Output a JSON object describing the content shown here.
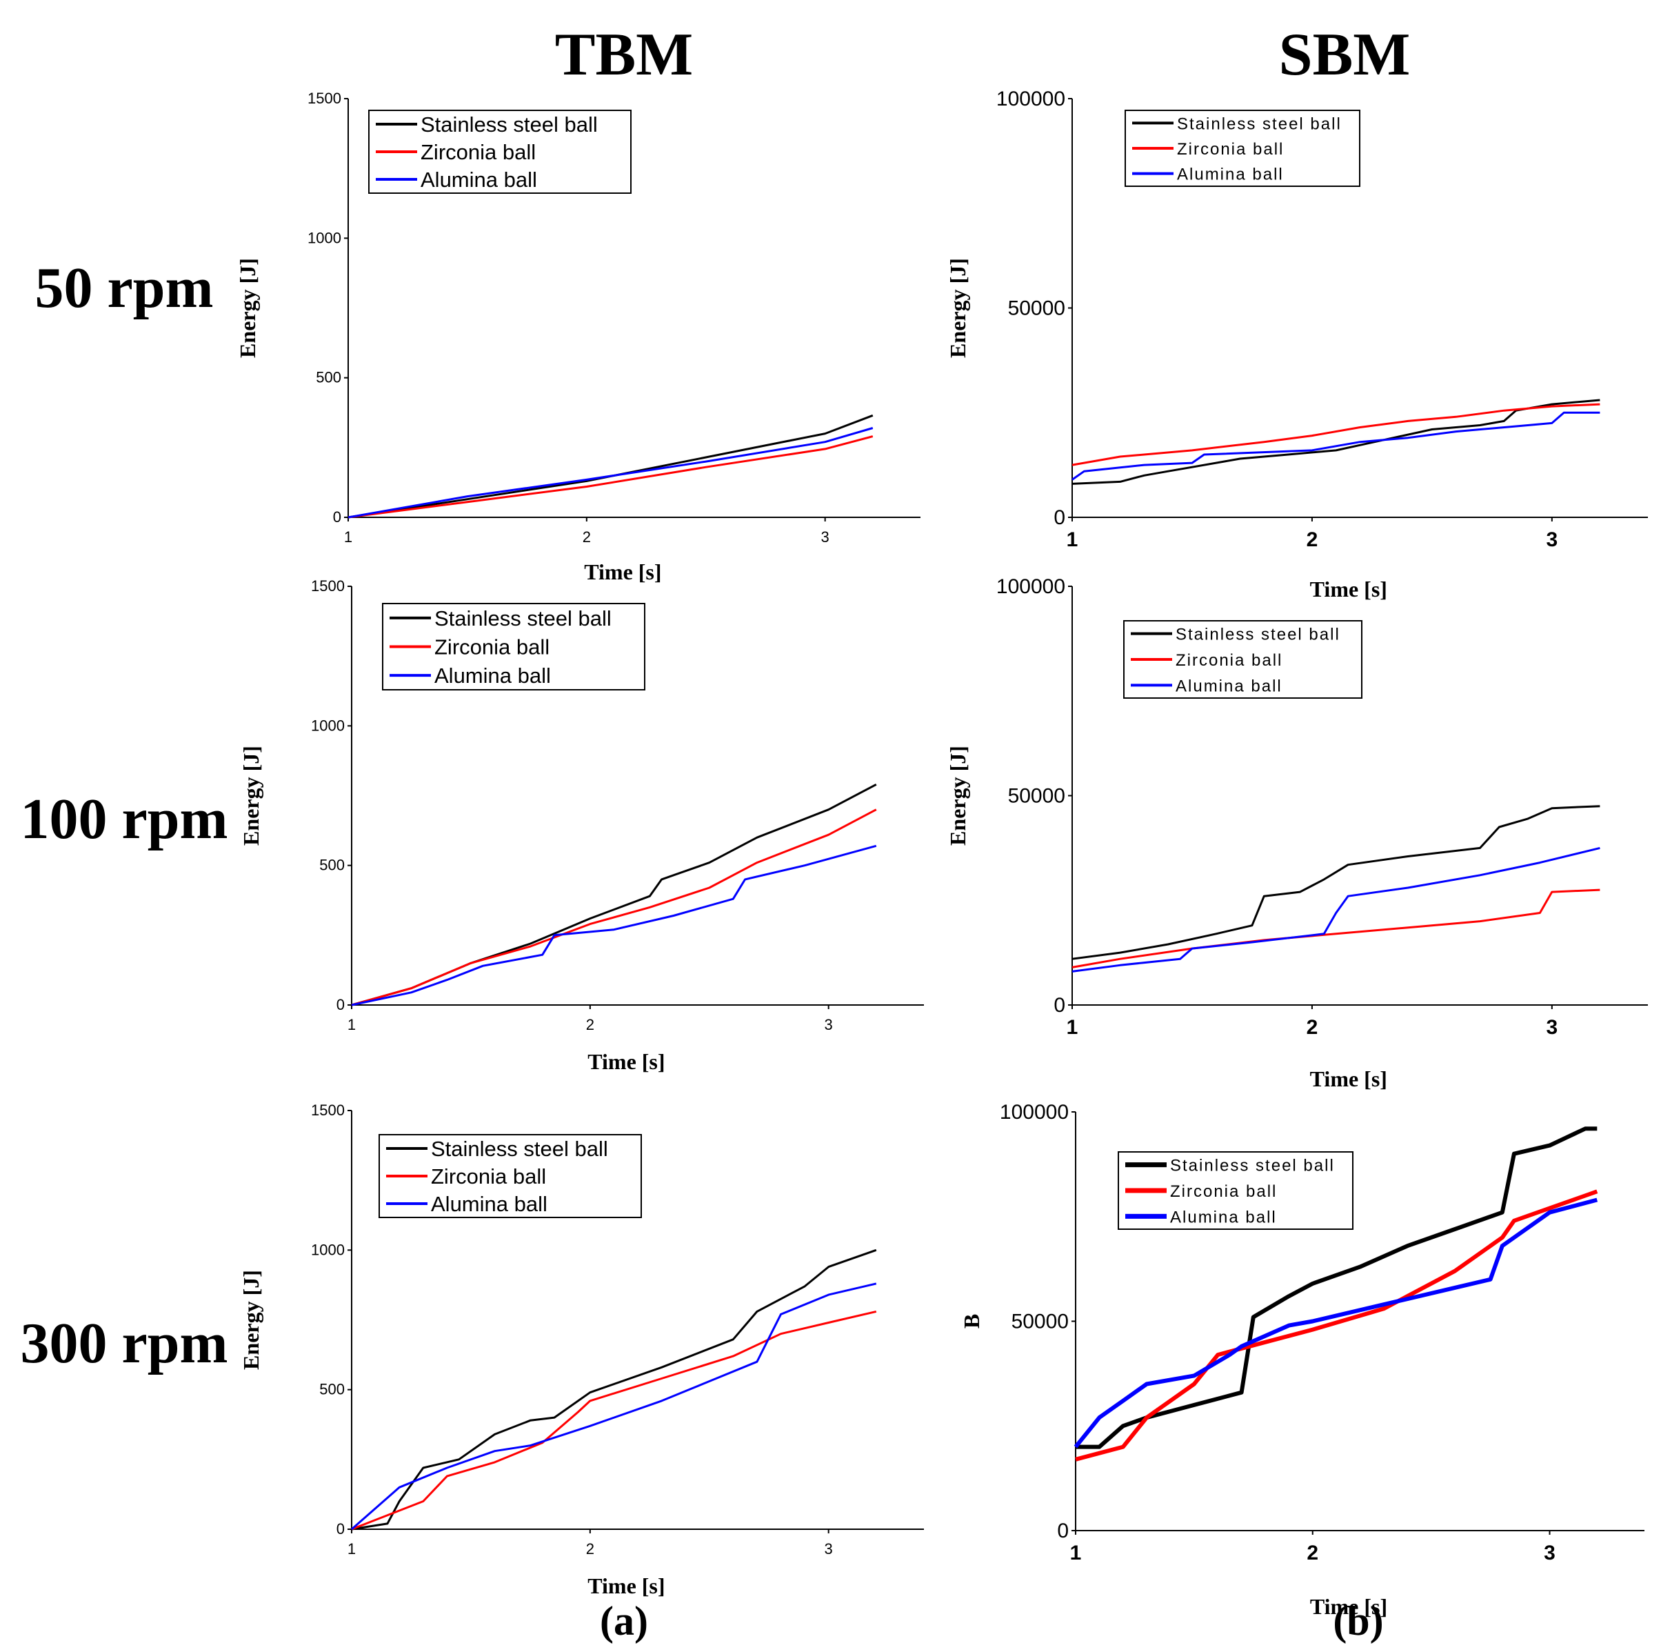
{
  "column_titles": {
    "tbm": "TBM",
    "sbm": "SBM"
  },
  "row_labels": {
    "r50": "50 rpm",
    "r100": "100 rpm",
    "r300": "300 rpm"
  },
  "panel_labels": {
    "a": "(a)",
    "b": "(b)"
  },
  "colors": {
    "steel": "#000000",
    "zirconia": "#ff0000",
    "alumina": "#0000ff"
  },
  "chart_data": [
    {
      "id": "tbm-50",
      "type": "line",
      "title": "",
      "xlabel": "Time [s]",
      "ylabel": "Energy [J]",
      "xlim": [
        1,
        3.4
      ],
      "ylim": [
        0,
        1500
      ],
      "xticks": [
        1,
        2,
        3
      ],
      "xtick_labels": [
        "1",
        "2",
        "3"
      ],
      "yticks": [
        0,
        500,
        1000,
        1500
      ],
      "ytick_labels": [
        "0",
        "500",
        "1000",
        "1500"
      ],
      "legend": [
        "Stainless steel ball",
        "Zirconia ball",
        "Alumina ball"
      ],
      "series": [
        {
          "name": "Stainless steel ball",
          "x": [
            1,
            1.5,
            2,
            2.5,
            3,
            3.2
          ],
          "values": [
            0,
            65,
            130,
            215,
            300,
            365
          ]
        },
        {
          "name": "Zirconia ball",
          "x": [
            1,
            1.5,
            2,
            2.5,
            3,
            3.2
          ],
          "values": [
            0,
            55,
            110,
            180,
            245,
            290
          ]
        },
        {
          "name": "Alumina ball",
          "x": [
            1,
            1.5,
            2,
            2.5,
            3,
            3.2
          ],
          "values": [
            0,
            75,
            135,
            200,
            270,
            320
          ]
        }
      ]
    },
    {
      "id": "sbm-50",
      "type": "line",
      "title": "",
      "xlabel": "Time [s]",
      "ylabel": "Energy [J]",
      "xlim": [
        1,
        3.4
      ],
      "ylim": [
        0,
        100000
      ],
      "xticks": [
        1,
        2,
        3
      ],
      "xtick_labels": [
        "1",
        "2",
        "3"
      ],
      "yticks": [
        0,
        50000,
        100000
      ],
      "ytick_labels": [
        "0",
        "50000",
        "100000"
      ],
      "legend": [
        "Stainless steel ball",
        "Zirconia ball",
        "Alumina ball"
      ],
      "series": [
        {
          "name": "Stainless steel ball",
          "x": [
            1,
            1.2,
            1.3,
            1.4,
            1.5,
            1.7,
            1.9,
            2.1,
            2.3,
            2.5,
            2.7,
            2.8,
            2.85,
            3.0,
            3.2
          ],
          "values": [
            8000,
            8500,
            10000,
            11000,
            12000,
            14000,
            15000,
            16000,
            18500,
            21000,
            22000,
            23000,
            25500,
            27000,
            28000
          ]
        },
        {
          "name": "Zirconia ball",
          "x": [
            1,
            1.2,
            1.5,
            1.8,
            2.0,
            2.2,
            2.4,
            2.6,
            2.8,
            3.0,
            3.2
          ],
          "values": [
            12500,
            14500,
            16000,
            18000,
            19500,
            21500,
            23000,
            24000,
            25500,
            26500,
            27000
          ]
        },
        {
          "name": "Alumina ball",
          "x": [
            1,
            1.05,
            1.3,
            1.5,
            1.55,
            2.0,
            2.2,
            2.4,
            2.6,
            2.9,
            3.0,
            3.05,
            3.2
          ],
          "values": [
            9000,
            11000,
            12500,
            13000,
            15000,
            16000,
            18000,
            19000,
            20500,
            22000,
            22500,
            25000,
            25000
          ]
        }
      ]
    },
    {
      "id": "tbm-100",
      "type": "line",
      "title": "",
      "xlabel": "Time [s]",
      "ylabel": "Energy [J]",
      "xlim": [
        1,
        3.4
      ],
      "ylim": [
        0,
        1500
      ],
      "xticks": [
        1,
        2,
        3
      ],
      "xtick_labels": [
        "1",
        "2",
        "3"
      ],
      "yticks": [
        0,
        500,
        1000,
        1500
      ],
      "ytick_labels": [
        "0",
        "500",
        "1000",
        "1500"
      ],
      "legend": [
        "Stainless steel ball",
        "Zirconia ball",
        "Alumina ball"
      ],
      "series": [
        {
          "name": "Stainless steel ball",
          "x": [
            1,
            1.25,
            1.5,
            1.75,
            2,
            2.25,
            2.3,
            2.5,
            2.7,
            3,
            3.2
          ],
          "values": [
            0,
            60,
            150,
            220,
            310,
            390,
            450,
            510,
            600,
            700,
            790
          ]
        },
        {
          "name": "Zirconia ball",
          "x": [
            1,
            1.25,
            1.5,
            1.75,
            2,
            2.25,
            2.5,
            2.7,
            3,
            3.2
          ],
          "values": [
            0,
            60,
            150,
            210,
            290,
            350,
            420,
            510,
            610,
            700
          ]
        },
        {
          "name": "Alumina ball",
          "x": [
            1,
            1.25,
            1.4,
            1.55,
            1.8,
            1.85,
            2.1,
            2.35,
            2.6,
            2.65,
            2.9,
            3.2
          ],
          "values": [
            0,
            45,
            90,
            140,
            180,
            250,
            270,
            320,
            380,
            450,
            500,
            570
          ]
        }
      ]
    },
    {
      "id": "sbm-100",
      "type": "line",
      "title": "",
      "xlabel": "Time [s]",
      "ylabel": "Energy [J]",
      "xlim": [
        1,
        3.4
      ],
      "ylim": [
        0,
        100000
      ],
      "xticks": [
        1,
        2,
        3
      ],
      "xtick_labels": [
        "1",
        "2",
        "3"
      ],
      "yticks": [
        0,
        50000,
        100000
      ],
      "ytick_labels": [
        "0",
        "50000",
        "100000"
      ],
      "legend": [
        "Stainless steel ball",
        "Zirconia ball",
        "Alumina ball"
      ],
      "series": [
        {
          "name": "Stainless steel ball",
          "x": [
            1,
            1.2,
            1.4,
            1.6,
            1.75,
            1.8,
            1.95,
            2.05,
            2.15,
            2.4,
            2.7,
            2.78,
            2.9,
            3.0,
            3.2
          ],
          "values": [
            11000,
            12500,
            14500,
            17000,
            19000,
            26000,
            27000,
            30000,
            33500,
            35500,
            37500,
            42500,
            44500,
            47000,
            47500
          ]
        },
        {
          "name": "Zirconia ball",
          "x": [
            1,
            1.2,
            1.5,
            1.8,
            2.1,
            2.4,
            2.7,
            2.95,
            3.0,
            3.2
          ],
          "values": [
            9000,
            11000,
            13500,
            15500,
            17000,
            18500,
            20000,
            22000,
            27000,
            27500
          ]
        },
        {
          "name": "Alumina ball",
          "x": [
            1,
            1.2,
            1.45,
            1.5,
            1.75,
            2.05,
            2.1,
            2.15,
            2.4,
            2.7,
            2.95,
            3.2
          ],
          "values": [
            8000,
            9500,
            11000,
            13500,
            15000,
            17000,
            22000,
            26000,
            28000,
            31000,
            34000,
            37500
          ]
        }
      ]
    },
    {
      "id": "tbm-300",
      "type": "line",
      "title": "",
      "xlabel": "Time [s]",
      "ylabel": "Energy [J]",
      "xlim": [
        1,
        3.4
      ],
      "ylim": [
        0,
        1500
      ],
      "xticks": [
        1,
        2,
        3
      ],
      "xtick_labels": [
        "1",
        "2",
        "3"
      ],
      "yticks": [
        0,
        500,
        1000,
        1500
      ],
      "ytick_labels": [
        "0",
        "500",
        "1000",
        "1500"
      ],
      "legend": [
        "Stainless steel ball",
        "Zirconia ball",
        "Alumina ball"
      ],
      "series": [
        {
          "name": "Stainless steel ball",
          "x": [
            1,
            1.15,
            1.2,
            1.3,
            1.45,
            1.6,
            1.75,
            1.85,
            2.0,
            2.3,
            2.6,
            2.7,
            2.9,
            3.0,
            3.2
          ],
          "values": [
            0,
            20,
            100,
            220,
            250,
            340,
            390,
            400,
            490,
            580,
            680,
            780,
            870,
            940,
            1000
          ]
        },
        {
          "name": "Zirconia ball",
          "x": [
            1,
            1.3,
            1.4,
            1.6,
            1.8,
            1.95,
            2.0,
            2.3,
            2.6,
            2.8,
            3.0,
            3.2
          ],
          "values": [
            0,
            100,
            190,
            240,
            310,
            420,
            460,
            540,
            620,
            700,
            740,
            780
          ]
        },
        {
          "name": "Alumina ball",
          "x": [
            1,
            1.2,
            1.4,
            1.6,
            1.75,
            2.0,
            2.3,
            2.5,
            2.7,
            2.8,
            3.0,
            3.2
          ],
          "values": [
            0,
            150,
            220,
            280,
            300,
            370,
            460,
            530,
            600,
            770,
            840,
            880
          ]
        }
      ]
    },
    {
      "id": "sbm-300",
      "type": "line",
      "title": "",
      "xlabel": "Time [s]",
      "ylabel": "B",
      "xlim": [
        1,
        3.4
      ],
      "ylim": [
        0,
        100000
      ],
      "xticks": [
        1,
        2,
        3
      ],
      "xtick_labels": [
        "1",
        "2",
        "3"
      ],
      "yticks": [
        0,
        50000,
        100000
      ],
      "ytick_labels": [
        "0",
        "50000",
        "100000"
      ],
      "legend": [
        "Stainless steel ball",
        "Zirconia ball",
        "Alumina ball"
      ],
      "series": [
        {
          "name": "Stainless steel ball",
          "x": [
            1,
            1.1,
            1.2,
            1.3,
            1.5,
            1.7,
            1.75,
            1.9,
            2.0,
            2.2,
            2.4,
            2.6,
            2.8,
            2.85,
            3.0,
            3.15,
            3.2
          ],
          "values": [
            20000,
            20000,
            25000,
            27000,
            30000,
            33000,
            51000,
            56000,
            59000,
            63000,
            68000,
            72000,
            76000,
            90000,
            92000,
            96000,
            96000
          ]
        },
        {
          "name": "Zirconia ball",
          "x": [
            1,
            1.2,
            1.3,
            1.4,
            1.5,
            1.6,
            1.8,
            2.0,
            2.3,
            2.6,
            2.8,
            2.85,
            3.0,
            3.2
          ],
          "values": [
            17000,
            20000,
            27000,
            31000,
            35000,
            42000,
            45000,
            48000,
            53000,
            62000,
            70000,
            74000,
            77000,
            81000
          ]
        },
        {
          "name": "Alumina ball",
          "x": [
            1,
            1.1,
            1.2,
            1.3,
            1.5,
            1.65,
            1.7,
            1.9,
            2.0,
            2.3,
            2.6,
            2.75,
            2.8,
            3.0,
            3.2
          ],
          "values": [
            20000,
            27000,
            31000,
            35000,
            37000,
            42000,
            44000,
            49000,
            50000,
            54000,
            58000,
            60000,
            68000,
            76000,
            79000
          ]
        }
      ]
    }
  ]
}
